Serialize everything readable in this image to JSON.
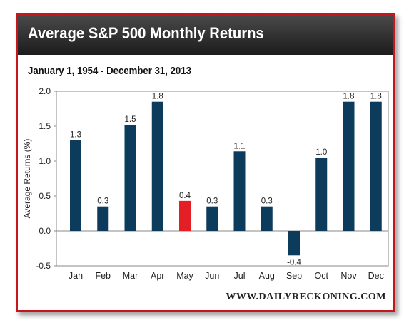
{
  "header": {
    "title": "Average S&P 500 Monthly Returns"
  },
  "subtitle": "January 1, 1954 - December 31, 2013",
  "watermark": "WWW.DAILYRECKONING.COM",
  "colors": {
    "frame_border": "#c4161c",
    "bar": "#0d3b5c",
    "highlight_bar": "#e31e24",
    "header_bg": "#2b2b2b"
  },
  "chart_data": {
    "type": "bar",
    "categories": [
      "Jan",
      "Feb",
      "Mar",
      "Apr",
      "May",
      "Jun",
      "Jul",
      "Aug",
      "Sep",
      "Oct",
      "Nov",
      "Dec"
    ],
    "values": [
      1.3,
      0.35,
      1.52,
      1.85,
      0.43,
      0.35,
      1.14,
      0.35,
      -0.35,
      1.05,
      1.85,
      1.85
    ],
    "value_labels": [
      "1.3",
      "0.3",
      "1.5",
      "1.8",
      "0.4",
      "0.3",
      "1.1",
      "0.3",
      "-0.4",
      "1.0",
      "1.8",
      "1.8"
    ],
    "highlight_category": "May",
    "ylabel": "Average Returns (%)",
    "xlabel": "",
    "ylim": [
      -0.5,
      2.0
    ],
    "yticks": [
      "2.0",
      "1.5",
      "1.0",
      "0.5",
      "0.0",
      "-0.5"
    ],
    "ytick_values": [
      2.0,
      1.5,
      1.0,
      0.5,
      0.0,
      -0.5
    ],
    "grid": false
  }
}
